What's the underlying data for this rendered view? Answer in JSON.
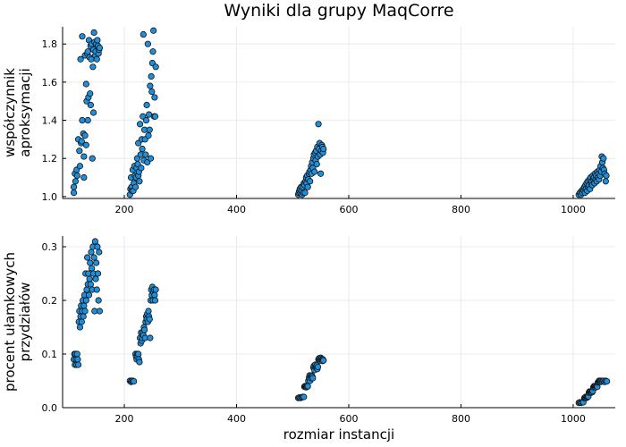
{
  "title": "Wyniki dla grupy MaqCorre",
  "xlabel": "rozmiar instancji",
  "chart_data": [
    {
      "type": "scatter",
      "ylabel_lines": [
        "współczynnik",
        "aproksymacji"
      ],
      "xlim": [
        90,
        1075
      ],
      "ylim": [
        0.99,
        1.89
      ],
      "xticks": [
        200,
        400,
        600,
        800,
        1000
      ],
      "yticks": [
        1.0,
        1.2,
        1.4,
        1.6,
        1.8
      ],
      "ytick_labels": [
        "1.0",
        "1.2",
        "1.4",
        "1.6",
        "1.8"
      ],
      "grid": true,
      "points": [
        [
          110,
          1.02
        ],
        [
          110,
          1.05
        ],
        [
          112,
          1.12
        ],
        [
          113,
          1.08
        ],
        [
          115,
          1.14
        ],
        [
          116,
          1.11
        ],
        [
          118,
          1.3
        ],
        [
          120,
          1.24
        ],
        [
          121,
          1.16
        ],
        [
          122,
          1.72
        ],
        [
          123,
          1.28
        ],
        [
          124,
          1.29
        ],
        [
          125,
          1.84
        ],
        [
          125,
          1.4
        ],
        [
          127,
          1.33
        ],
        [
          128,
          1.21
        ],
        [
          128,
          1.1
        ],
        [
          130,
          1.32
        ],
        [
          130,
          1.74
        ],
        [
          132,
          1.59
        ],
        [
          132,
          1.27
        ],
        [
          133,
          1.5
        ],
        [
          134,
          1.75
        ],
        [
          135,
          1.4
        ],
        [
          135,
          1.76
        ],
        [
          136,
          1.52
        ],
        [
          137,
          1.82
        ],
        [
          138,
          1.73
        ],
        [
          139,
          1.54
        ],
        [
          140,
          1.48
        ],
        [
          140,
          1.79
        ],
        [
          141,
          1.72
        ],
        [
          142,
          1.8
        ],
        [
          143,
          1.2
        ],
        [
          144,
          1.68
        ],
        [
          145,
          1.44
        ],
        [
          145,
          1.77
        ],
        [
          146,
          1.86
        ],
        [
          147,
          1.81
        ],
        [
          148,
          1.74
        ],
        [
          149,
          1.76
        ],
        [
          150,
          1.8
        ],
        [
          151,
          1.72
        ],
        [
          152,
          1.82
        ],
        [
          153,
          1.79
        ],
        [
          154,
          1.75
        ],
        [
          155,
          1.77
        ],
        [
          156,
          1.78
        ],
        [
          210,
          1.01
        ],
        [
          211,
          1.04
        ],
        [
          212,
          1.1
        ],
        [
          213,
          1.05
        ],
        [
          214,
          1.03
        ],
        [
          215,
          1.14
        ],
        [
          216,
          1.03
        ],
        [
          217,
          1.07
        ],
        [
          218,
          1.16
        ],
        [
          219,
          1.11
        ],
        [
          220,
          1.05
        ],
        [
          221,
          1.1
        ],
        [
          222,
          1.15
        ],
        [
          223,
          1.2
        ],
        [
          224,
          1.17
        ],
        [
          225,
          1.28
        ],
        [
          225,
          1.11
        ],
        [
          226,
          1.13
        ],
        [
          227,
          1.08
        ],
        [
          228,
          1.38
        ],
        [
          229,
          1.22
        ],
        [
          230,
          1.15
        ],
        [
          231,
          1.3
        ],
        [
          232,
          1.25
        ],
        [
          233,
          1.42
        ],
        [
          234,
          1.85
        ],
        [
          235,
          1.19
        ],
        [
          236,
          1.35
        ],
        [
          237,
          1.3
        ],
        [
          238,
          1.22
        ],
        [
          239,
          1.4
        ],
        [
          240,
          1.48
        ],
        [
          241,
          1.18
        ],
        [
          242,
          1.8
        ],
        [
          243,
          1.32
        ],
        [
          244,
          1.43
        ],
        [
          245,
          1.35
        ],
        [
          246,
          1.58
        ],
        [
          247,
          1.2
        ],
        [
          248,
          1.63
        ],
        [
          249,
          1.55
        ],
        [
          250,
          1.7
        ],
        [
          251,
          1.76
        ],
        [
          252,
          1.87
        ],
        [
          253,
          1.42
        ],
        [
          254,
          1.52
        ],
        [
          255,
          1.42
        ],
        [
          256,
          1.68
        ],
        [
          510,
          1.01
        ],
        [
          511,
          1.02
        ],
        [
          512,
          1.03
        ],
        [
          513,
          1.04
        ],
        [
          514,
          1.02
        ],
        [
          515,
          1.05
        ],
        [
          516,
          1.03
        ],
        [
          517,
          1.01
        ],
        [
          518,
          1.05
        ],
        [
          519,
          1.02
        ],
        [
          520,
          1.07
        ],
        [
          521,
          1.06
        ],
        [
          522,
          1.02
        ],
        [
          523,
          1.08
        ],
        [
          524,
          1.1
        ],
        [
          525,
          1.07
        ],
        [
          526,
          1.11
        ],
        [
          527,
          1.05
        ],
        [
          528,
          1.09
        ],
        [
          529,
          1.12
        ],
        [
          530,
          1.13
        ],
        [
          531,
          1.08
        ],
        [
          532,
          1.14
        ],
        [
          533,
          1.16
        ],
        [
          534,
          1.12
        ],
        [
          535,
          1.18
        ],
        [
          536,
          1.15
        ],
        [
          537,
          1.2
        ],
        [
          538,
          1.22
        ],
        [
          539,
          1.13
        ],
        [
          540,
          1.23
        ],
        [
          541,
          1.19
        ],
        [
          542,
          1.24
        ],
        [
          543,
          1.17
        ],
        [
          544,
          1.26
        ],
        [
          545,
          1.21
        ],
        [
          546,
          1.38
        ],
        [
          547,
          1.25
        ],
        [
          548,
          1.28
        ],
        [
          549,
          1.22
        ],
        [
          550,
          1.12
        ],
        [
          551,
          1.24
        ],
        [
          552,
          1.27
        ],
        [
          553,
          1.26
        ],
        [
          554,
          1.23
        ],
        [
          555,
          1.25
        ],
        [
          1010,
          1.01
        ],
        [
          1012,
          1.02
        ],
        [
          1014,
          1.01
        ],
        [
          1015,
          1.03
        ],
        [
          1016,
          1.02
        ],
        [
          1018,
          1.04
        ],
        [
          1019,
          1.03
        ],
        [
          1020,
          1.05
        ],
        [
          1021,
          1.02
        ],
        [
          1022,
          1.06
        ],
        [
          1023,
          1.04
        ],
        [
          1024,
          1.07
        ],
        [
          1025,
          1.03
        ],
        [
          1026,
          1.08
        ],
        [
          1027,
          1.05
        ],
        [
          1028,
          1.06
        ],
        [
          1029,
          1.09
        ],
        [
          1030,
          1.04
        ],
        [
          1031,
          1.1
        ],
        [
          1032,
          1.07
        ],
        [
          1033,
          1.08
        ],
        [
          1034,
          1.06
        ],
        [
          1035,
          1.11
        ],
        [
          1036,
          1.09
        ],
        [
          1037,
          1.1
        ],
        [
          1038,
          1.07
        ],
        [
          1039,
          1.12
        ],
        [
          1040,
          1.09
        ],
        [
          1041,
          1.11
        ],
        [
          1042,
          1.08
        ],
        [
          1043,
          1.13
        ],
        [
          1044,
          1.1
        ],
        [
          1045,
          1.12
        ],
        [
          1046,
          1.09
        ],
        [
          1047,
          1.14
        ],
        [
          1048,
          1.11
        ],
        [
          1049,
          1.16
        ],
        [
          1050,
          1.13
        ],
        [
          1051,
          1.21
        ],
        [
          1052,
          1.18
        ],
        [
          1053,
          1.15
        ],
        [
          1054,
          1.2
        ],
        [
          1055,
          1.14
        ],
        [
          1056,
          1.12
        ],
        [
          1058,
          1.08
        ],
        [
          1059,
          1.11
        ]
      ]
    },
    {
      "type": "scatter",
      "ylabel_lines": [
        "procent ułamkowych",
        "przydziałów"
      ],
      "xlim": [
        90,
        1075
      ],
      "ylim": [
        0.0,
        0.32
      ],
      "xticks": [
        200,
        400,
        600,
        800,
        1000
      ],
      "yticks": [
        0.0,
        0.1,
        0.2,
        0.3
      ],
      "ytick_labels": [
        "0.0",
        "0.1",
        "0.2",
        "0.3"
      ],
      "grid": true,
      "points": [
        [
          110,
          0.09
        ],
        [
          111,
          0.1
        ],
        [
          112,
          0.08
        ],
        [
          113,
          0.1
        ],
        [
          114,
          0.09
        ],
        [
          115,
          0.08
        ],
        [
          116,
          0.1
        ],
        [
          117,
          0.09
        ],
        [
          118,
          0.08
        ],
        [
          119,
          0.16
        ],
        [
          120,
          0.18
        ],
        [
          121,
          0.15
        ],
        [
          122,
          0.17
        ],
        [
          123,
          0.19
        ],
        [
          124,
          0.16
        ],
        [
          125,
          0.18
        ],
        [
          126,
          0.2
        ],
        [
          127,
          0.17
        ],
        [
          128,
          0.19
        ],
        [
          129,
          0.21
        ],
        [
          130,
          0.18
        ],
        [
          131,
          0.25
        ],
        [
          132,
          0.2
        ],
        [
          133,
          0.22
        ],
        [
          134,
          0.28
        ],
        [
          135,
          0.23
        ],
        [
          136,
          0.25
        ],
        [
          137,
          0.21
        ],
        [
          138,
          0.24
        ],
        [
          139,
          0.27
        ],
        [
          140,
          0.23
        ],
        [
          141,
          0.29
        ],
        [
          142,
          0.26
        ],
        [
          143,
          0.22
        ],
        [
          144,
          0.3
        ],
        [
          145,
          0.25
        ],
        [
          146,
          0.28
        ],
        [
          147,
          0.18
        ],
        [
          148,
          0.31
        ],
        [
          149,
          0.24
        ],
        [
          150,
          0.27
        ],
        [
          151,
          0.22
        ],
        [
          152,
          0.3
        ],
        [
          153,
          0.25
        ],
        [
          154,
          0.2
        ],
        [
          155,
          0.29
        ],
        [
          156,
          0.18
        ],
        [
          210,
          0.05
        ],
        [
          212,
          0.048
        ],
        [
          213,
          0.05
        ],
        [
          215,
          0.05
        ],
        [
          217,
          0.049
        ],
        [
          220,
          0.1
        ],
        [
          221,
          0.095
        ],
        [
          222,
          0.09
        ],
        [
          223,
          0.1
        ],
        [
          224,
          0.095
        ],
        [
          225,
          0.1
        ],
        [
          226,
          0.09
        ],
        [
          227,
          0.085
        ],
        [
          228,
          0.13
        ],
        [
          229,
          0.12
        ],
        [
          230,
          0.14
        ],
        [
          231,
          0.125
        ],
        [
          232,
          0.13
        ],
        [
          233,
          0.14
        ],
        [
          234,
          0.135
        ],
        [
          235,
          0.15
        ],
        [
          236,
          0.145
        ],
        [
          237,
          0.13
        ],
        [
          238,
          0.16
        ],
        [
          239,
          0.17
        ],
        [
          240,
          0.165
        ],
        [
          241,
          0.175
        ],
        [
          242,
          0.16
        ],
        [
          243,
          0.18
        ],
        [
          244,
          0.17
        ],
        [
          245,
          0.165
        ],
        [
          246,
          0.13
        ],
        [
          247,
          0.2
        ],
        [
          248,
          0.22
        ],
        [
          249,
          0.21
        ],
        [
          250,
          0.225
        ],
        [
          251,
          0.2
        ],
        [
          252,
          0.215
        ],
        [
          253,
          0.22
        ],
        [
          254,
          0.21
        ],
        [
          255,
          0.2
        ],
        [
          256,
          0.22
        ],
        [
          510,
          0.018
        ],
        [
          512,
          0.019
        ],
        [
          514,
          0.018
        ],
        [
          516,
          0.019
        ],
        [
          518,
          0.02
        ],
        [
          520,
          0.02
        ],
        [
          521,
          0.039
        ],
        [
          522,
          0.04
        ],
        [
          523,
          0.04
        ],
        [
          524,
          0.038
        ],
        [
          525,
          0.04
        ],
        [
          526,
          0.039
        ],
        [
          527,
          0.04
        ],
        [
          528,
          0.05
        ],
        [
          529,
          0.055
        ],
        [
          530,
          0.06
        ],
        [
          531,
          0.05
        ],
        [
          532,
          0.058
        ],
        [
          533,
          0.055
        ],
        [
          534,
          0.06
        ],
        [
          535,
          0.058
        ],
        [
          536,
          0.055
        ],
        [
          537,
          0.075
        ],
        [
          538,
          0.078
        ],
        [
          539,
          0.07
        ],
        [
          540,
          0.08
        ],
        [
          541,
          0.075
        ],
        [
          542,
          0.077
        ],
        [
          543,
          0.079
        ],
        [
          544,
          0.072
        ],
        [
          545,
          0.076
        ],
        [
          546,
          0.09
        ],
        [
          547,
          0.092
        ],
        [
          548,
          0.088
        ],
        [
          549,
          0.09
        ],
        [
          550,
          0.093
        ],
        [
          551,
          0.091
        ],
        [
          552,
          0.089
        ],
        [
          553,
          0.087
        ],
        [
          554,
          0.09
        ],
        [
          555,
          0.088
        ],
        [
          1010,
          0.009
        ],
        [
          1012,
          0.01
        ],
        [
          1014,
          0.009
        ],
        [
          1016,
          0.01
        ],
        [
          1018,
          0.01
        ],
        [
          1020,
          0.018
        ],
        [
          1021,
          0.019
        ],
        [
          1022,
          0.02
        ],
        [
          1023,
          0.018
        ],
        [
          1024,
          0.02
        ],
        [
          1025,
          0.019
        ],
        [
          1026,
          0.02
        ],
        [
          1027,
          0.021
        ],
        [
          1028,
          0.028
        ],
        [
          1029,
          0.03
        ],
        [
          1030,
          0.029
        ],
        [
          1031,
          0.03
        ],
        [
          1032,
          0.028
        ],
        [
          1033,
          0.03
        ],
        [
          1034,
          0.029
        ],
        [
          1035,
          0.031
        ],
        [
          1036,
          0.038
        ],
        [
          1037,
          0.04
        ],
        [
          1038,
          0.039
        ],
        [
          1039,
          0.04
        ],
        [
          1040,
          0.038
        ],
        [
          1041,
          0.04
        ],
        [
          1042,
          0.041
        ],
        [
          1043,
          0.039
        ],
        [
          1044,
          0.047
        ],
        [
          1045,
          0.048
        ],
        [
          1046,
          0.05
        ],
        [
          1047,
          0.049
        ],
        [
          1048,
          0.05
        ],
        [
          1049,
          0.048
        ],
        [
          1050,
          0.05
        ],
        [
          1052,
          0.049
        ],
        [
          1054,
          0.05
        ],
        [
          1056,
          0.048
        ],
        [
          1058,
          0.05
        ],
        [
          1060,
          0.049
        ]
      ]
    }
  ]
}
